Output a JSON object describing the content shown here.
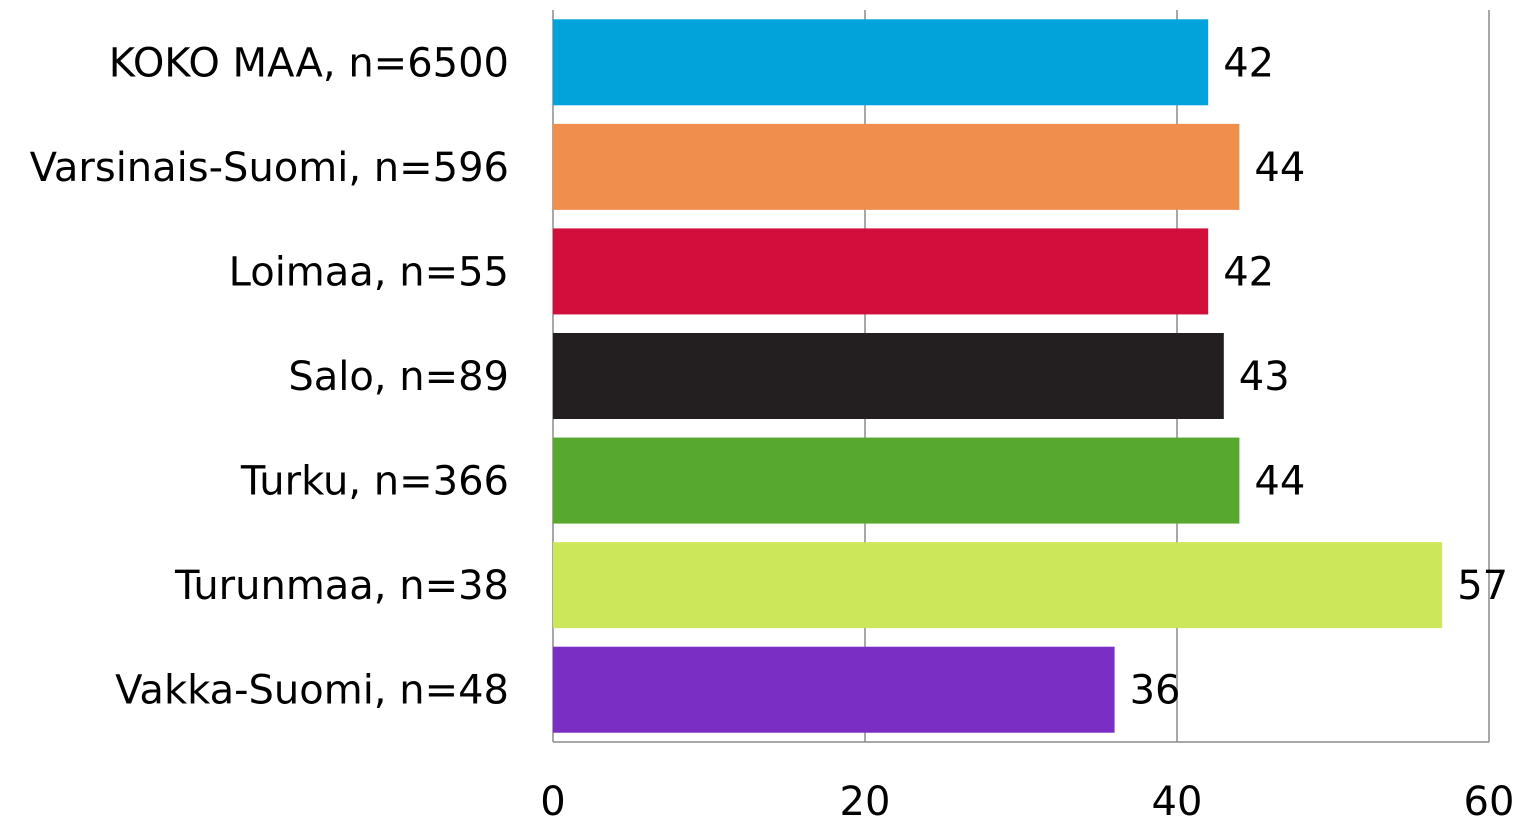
{
  "chart_data": {
    "type": "bar",
    "orientation": "horizontal",
    "title": "",
    "xlabel": "",
    "ylabel": "",
    "categories": [
      "KOKO MAA, n=6500",
      "Varsinais-Suomi, n=596",
      "Loimaa, n=55",
      "Salo, n=89",
      "Turku, n=366",
      "Turunmaa, n=38",
      "Vakka-Suomi, n=48"
    ],
    "values": [
      42,
      44,
      42,
      43,
      44,
      57,
      36
    ],
    "data_labels": [
      "42",
      "44",
      "42",
      "43",
      "44",
      "57",
      "36"
    ],
    "colors": [
      "#00a3da",
      "#f08f4b",
      "#d10e3c",
      "#231f20",
      "#57a82e",
      "#cde75a",
      "#7a2ec3"
    ],
    "xlim": [
      0,
      60
    ],
    "x_ticks": [
      0,
      20,
      40,
      60
    ],
    "x_tick_labels": [
      "0",
      "20",
      "40",
      "60"
    ],
    "grid": "vertical",
    "legend": "none"
  }
}
